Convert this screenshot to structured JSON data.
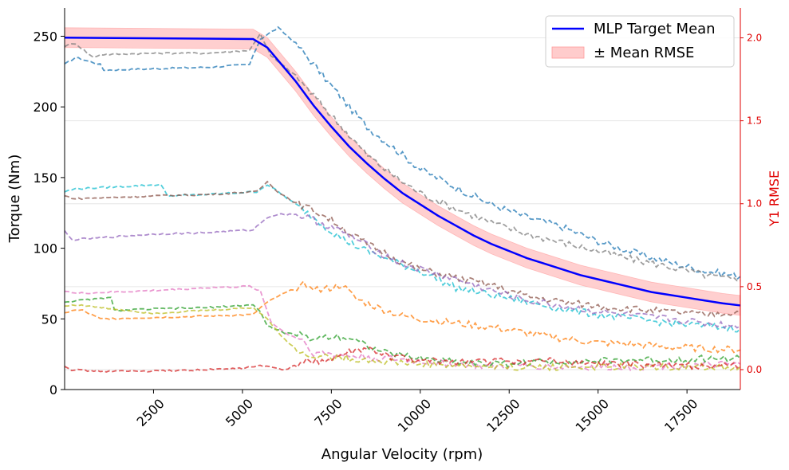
{
  "chart_data": {
    "type": "line",
    "title": "",
    "xlabel": "Angular Velocity (rpm)",
    "ylabel": "Torque (Nm)",
    "y2label": "Y1 RMSE",
    "xlim": [
      0,
      19000
    ],
    "ylim": [
      0,
      270
    ],
    "y2lim": [
      -0.12,
      2.18
    ],
    "x_ticks": [
      2500,
      5000,
      7500,
      10000,
      12500,
      15000,
      17500
    ],
    "y_ticks": [
      0,
      50,
      100,
      150,
      200,
      250
    ],
    "y2_ticks": [
      0.0,
      0.5,
      1.0,
      1.5,
      2.0
    ],
    "grid": "horizontal (right axis)",
    "legend_position": "top-right",
    "legend": [
      {
        "label": "MLP Target Mean",
        "kind": "line",
        "color": "#0000ff"
      },
      {
        "label": "± Mean RMSE",
        "kind": "band",
        "color": "#ffcccc"
      }
    ],
    "target_mean": {
      "name": "MLP Target Mean",
      "color": "#0000ff",
      "x": [
        0,
        5300,
        5700,
        6000,
        6500,
        7000,
        7500,
        8000,
        8500,
        9000,
        9500,
        10000,
        10500,
        11000,
        11500,
        12000,
        12500,
        13000,
        13500,
        14000,
        14500,
        15000,
        15500,
        16000,
        16500,
        17000,
        17500,
        18000,
        18500,
        19000
      ],
      "y": [
        249,
        248,
        242,
        233,
        218,
        201,
        186,
        172,
        160,
        149,
        139,
        131,
        123,
        116,
        109,
        103,
        98,
        93,
        89,
        85,
        81,
        78,
        75,
        72,
        69,
        67,
        65,
        63,
        61,
        59.5
      ]
    },
    "rmse_band": {
      "name": "± Mean RMSE",
      "color": "#ffcccc",
      "half_width": 7
    },
    "series": [
      {
        "color": "#1f77b4",
        "x": [
          0,
          300,
          1000,
          1100,
          2500,
          4000,
          5200,
          5500,
          6000,
          6500,
          7000,
          7500,
          8000,
          8500,
          9000,
          9500,
          10000,
          11000,
          12000,
          13000,
          14000,
          15000,
          16000,
          17000,
          18000,
          19000
        ],
        "y": [
          230,
          235,
          230,
          226,
          227,
          228,
          230,
          248,
          256,
          245,
          230,
          215,
          200,
          186,
          176,
          166,
          156,
          143,
          131,
          122,
          115,
          105,
          97,
          90,
          84,
          80
        ]
      },
      {
        "color": "#7f7f7f",
        "x": [
          0,
          300,
          800,
          1000,
          2500,
          4000,
          5200,
          5500,
          5800,
          6500,
          7000,
          7500,
          8000,
          8500,
          9000,
          9500,
          10000,
          11000,
          12000,
          13000,
          14000,
          15000,
          16000,
          17000,
          18000,
          19000
        ],
        "y": [
          243,
          245,
          235,
          237,
          238,
          238,
          240,
          252,
          236,
          222,
          208,
          194,
          180,
          166,
          156,
          147,
          139,
          128,
          118,
          110,
          104,
          98,
          92,
          87,
          81,
          77
        ]
      },
      {
        "color": "#17becf",
        "x": [
          0,
          300,
          2700,
          2900,
          4000,
          5400,
          5700,
          6000,
          6500,
          7000,
          7500,
          8000,
          8500,
          9000,
          9500,
          10000,
          11000,
          12000,
          13000,
          14000,
          15000,
          16000,
          17000,
          18000,
          19000
        ],
        "y": [
          140,
          142,
          145,
          137,
          138,
          140,
          145,
          140,
          131,
          122,
          112,
          104,
          98,
          93,
          88,
          84,
          72,
          67,
          62,
          57,
          53,
          50,
          47,
          45,
          43
        ]
      },
      {
        "color": "#8c564b",
        "x": [
          0,
          300,
          2500,
          4000,
          5400,
          5700,
          6000,
          6500,
          7000,
          7500,
          8000,
          8500,
          9000,
          9500,
          10000,
          11000,
          12000,
          13000,
          14000,
          15000,
          16000,
          17000,
          18000,
          19000
        ],
        "y": [
          137,
          135,
          137,
          138,
          140,
          147,
          140,
          132,
          127,
          120,
          111,
          103,
          97,
          90,
          85,
          79,
          74,
          66,
          62,
          59,
          57,
          55,
          53,
          55
        ]
      },
      {
        "color": "#9467bd",
        "x": [
          0,
          200,
          2500,
          4000,
          5300,
          5700,
          6000,
          6500,
          7000,
          7500,
          8000,
          8500,
          9000,
          9500,
          10000,
          11000,
          12000,
          13000,
          14000,
          15000,
          16000,
          17000,
          18000,
          19000
        ],
        "y": [
          112,
          106,
          110,
          111,
          113,
          122,
          124,
          124,
          120,
          115,
          109,
          102,
          95,
          89,
          85,
          78,
          70,
          63,
          59,
          55,
          52,
          50,
          47,
          45
        ]
      },
      {
        "color": "#e377c2",
        "x": [
          0,
          300,
          2500,
          4000,
          5200,
          5500,
          5800,
          6200,
          6700,
          7000,
          7500,
          8000,
          9000,
          10000,
          11000,
          12000,
          13000,
          14000,
          15000,
          16000,
          17000,
          18000,
          19000
        ],
        "y": [
          70,
          68,
          70,
          72,
          73,
          70,
          48,
          40,
          35,
          26,
          25,
          24,
          22,
          20,
          18,
          16,
          17,
          16,
          16,
          16,
          17,
          17,
          18
        ]
      },
      {
        "color": "#2ca02c",
        "x": [
          0,
          1300,
          1400,
          2500,
          4000,
          5300,
          5500,
          5700,
          6200,
          6700,
          7000,
          7500,
          8000,
          9000,
          10000,
          11000,
          12000,
          13000,
          14000,
          15000,
          16000,
          17000,
          18000,
          19000
        ],
        "y": [
          62,
          65,
          56,
          57,
          58,
          60,
          55,
          45,
          40,
          38,
          36,
          38,
          37,
          26,
          22,
          20,
          18,
          19,
          20,
          20,
          21,
          21,
          22,
          22
        ]
      },
      {
        "color": "#bcbd22",
        "x": [
          0,
          300,
          2500,
          4000,
          5300,
          5700,
          6200,
          6700,
          7000,
          7500,
          8000,
          9000,
          10000,
          11000,
          12000,
          13000,
          14000,
          15000,
          16000,
          17000,
          18000,
          19000
        ],
        "y": [
          59,
          60,
          54,
          56,
          58,
          50,
          35,
          25,
          24,
          23,
          22,
          20,
          18,
          17,
          16,
          16,
          16,
          16,
          16,
          16,
          16,
          16
        ]
      },
      {
        "color": "#ff7f0e",
        "x": [
          0,
          200,
          500,
          1000,
          2500,
          4000,
          5300,
          5600,
          6000,
          6800,
          7200,
          7800,
          8200,
          8800,
          9500,
          10000,
          11000,
          12000,
          13000,
          14000,
          15000,
          16000,
          17000,
          18000,
          19000
        ],
        "y": [
          54,
          56,
          56,
          50,
          51,
          52,
          53,
          60,
          66,
          75,
          70,
          74,
          64,
          58,
          52,
          50,
          47,
          44,
          40,
          36,
          33,
          32,
          30,
          29,
          28
        ]
      },
      {
        "color": "#d62728",
        "x": [
          0,
          200,
          1000,
          2500,
          4000,
          5000,
          5500,
          6200,
          6800,
          7500,
          8000,
          8500,
          9000,
          10000,
          11000,
          12000,
          13000,
          14000,
          15000,
          16000,
          17000,
          18000,
          19000
        ],
        "y": [
          17,
          14,
          13,
          13,
          14,
          15,
          17,
          14,
          20,
          21,
          26,
          29,
          24,
          20,
          20,
          20,
          20,
          20,
          18,
          18,
          17,
          17,
          17
        ]
      }
    ]
  }
}
